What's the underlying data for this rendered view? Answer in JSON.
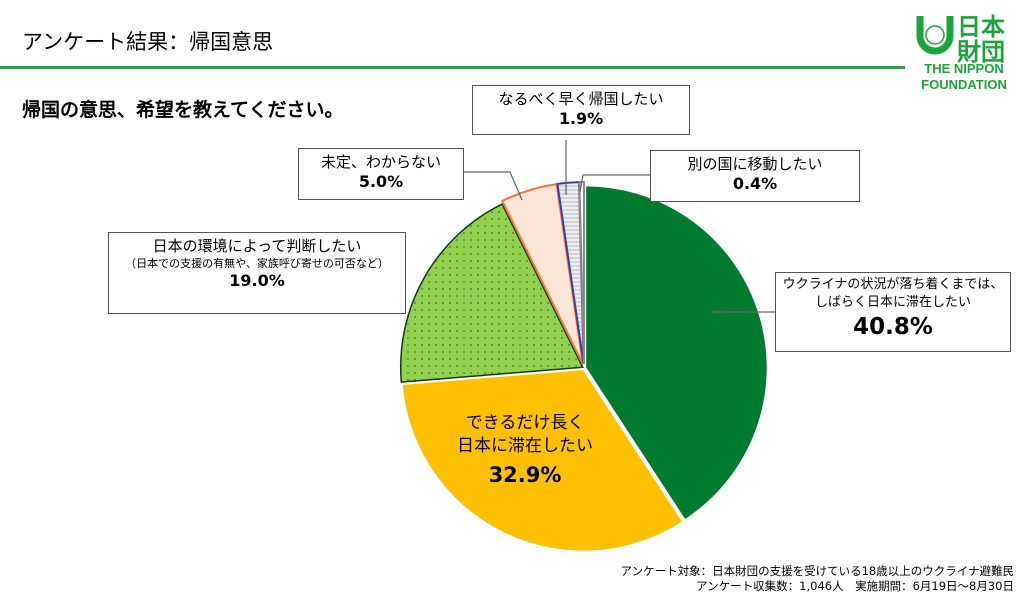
{
  "header": {
    "title": "アンケート結果：帰国意思",
    "logo_text": "日本財団",
    "logo_en": [
      "THE NIPPON",
      "FOUNDATION"
    ]
  },
  "question": "帰国の意思、希望を教えてください。",
  "chart_data": {
    "type": "pie",
    "title": "",
    "start": "top, clockwise",
    "slices": [
      {
        "label": "ウクライナの状況が落ち着くまでは、しばらく日本に滞在したい",
        "label_lines": [
          "ウクライナの状況が落ち着くまでは、",
          "しばらく日本に滞在したい"
        ],
        "value": 40.8,
        "display": "40.8%",
        "color": "#007a2f",
        "pattern": "solid"
      },
      {
        "label": "できるだけ長く日本に滞在したい",
        "label_lines": [
          "できるだけ長く",
          "日本に滞在したい"
        ],
        "value": 32.9,
        "display": "32.9%",
        "color": "#ffc000",
        "pattern": "solid"
      },
      {
        "label": "日本の環境によって判断したい",
        "sub": "（日本での支援の有無や、家族呼び寄せの可否など）",
        "value": 19.0,
        "display": "19.0%",
        "color": "#92d050",
        "pattern": "dots"
      },
      {
        "label": "未定、わからない",
        "value": 5.0,
        "display": "5.0%",
        "color": "#fbe5d6",
        "border": "#f4733b",
        "pattern": "solid"
      },
      {
        "label": "なるべく早く帰国したい",
        "value": 1.9,
        "display": "1.9%",
        "color": "#e8e8ec",
        "border": "#3a3fa0",
        "pattern": "hlines"
      },
      {
        "label": "別の国に移動したい",
        "value": 0.4,
        "display": "0.4%",
        "color": "#ffffff",
        "border": "#888888",
        "pattern": "solid"
      }
    ]
  },
  "footer": [
    "アンケート対象：日本財団の支援を受けている18歳以上のウクライナ避難民",
    "アンケート収集数：1,046人　実施期間：6月19日～8月30日"
  ]
}
